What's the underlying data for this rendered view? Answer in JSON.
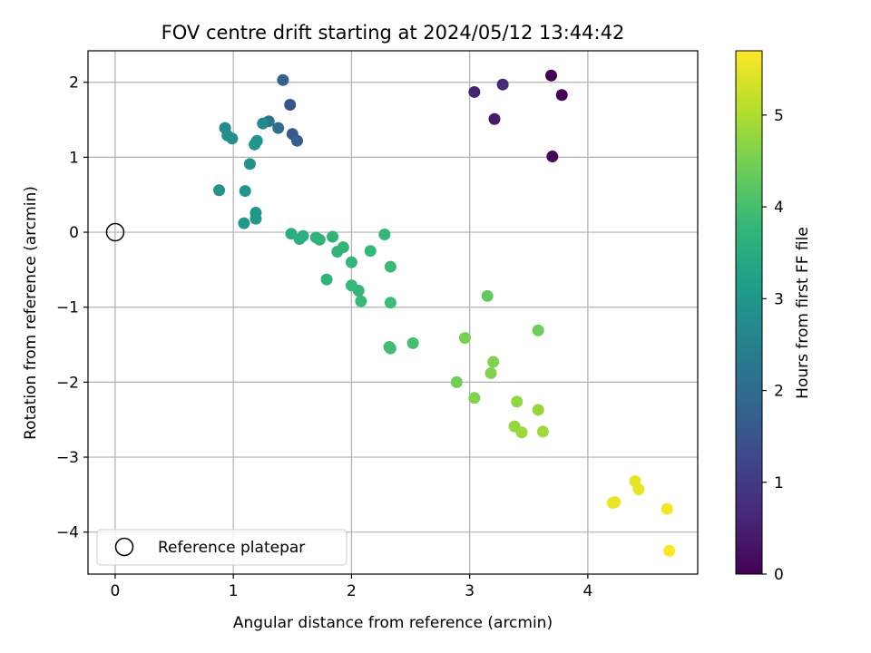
{
  "chart_data": {
    "type": "scatter",
    "title": "FOV centre drift starting at 2024/05/12 13:44:42",
    "xlabel": "Angular distance from reference (arcmin)",
    "ylabel": "Rotation from reference (arcmin)",
    "xlim": [
      -0.23,
      4.93
    ],
    "ylim": [
      -4.56,
      2.42
    ],
    "xticks": [
      0,
      1,
      2,
      3,
      4
    ],
    "yticks": [
      -4,
      -3,
      -2,
      -1,
      0,
      1,
      2
    ],
    "grid": true,
    "colorbar": {
      "label": "Hours from first FF file",
      "colormap": "viridis",
      "range": [
        0,
        5.7
      ],
      "ticks": [
        0,
        1,
        2,
        3,
        4,
        5
      ]
    },
    "legend": {
      "placement": "lower-left",
      "entries": [
        {
          "label": "Reference platepar",
          "marker": "open-circle"
        }
      ]
    },
    "reference_point": {
      "x": 0,
      "y": 0,
      "label": "Reference platepar"
    },
    "points": [
      {
        "x": 3.69,
        "y": 2.09,
        "hours": 0.0
      },
      {
        "x": 3.78,
        "y": 1.83,
        "hours": 0.05
      },
      {
        "x": 3.7,
        "y": 1.01,
        "hours": 0.1
      },
      {
        "x": 3.21,
        "y": 1.51,
        "hours": 0.4
      },
      {
        "x": 3.04,
        "y": 1.87,
        "hours": 0.55
      },
      {
        "x": 3.28,
        "y": 1.97,
        "hours": 0.65
      },
      {
        "x": 1.42,
        "y": 2.03,
        "hours": 1.8
      },
      {
        "x": 1.48,
        "y": 1.7,
        "hours": 1.5
      },
      {
        "x": 1.5,
        "y": 1.31,
        "hours": 1.6
      },
      {
        "x": 1.54,
        "y": 1.22,
        "hours": 1.7
      },
      {
        "x": 1.38,
        "y": 1.39,
        "hours": 2.05
      },
      {
        "x": 1.3,
        "y": 1.48,
        "hours": 2.2
      },
      {
        "x": 1.25,
        "y": 1.45,
        "hours": 2.7
      },
      {
        "x": 0.93,
        "y": 1.39,
        "hours": 2.75
      },
      {
        "x": 0.95,
        "y": 1.29,
        "hours": 2.8
      },
      {
        "x": 0.99,
        "y": 1.25,
        "hours": 2.85
      },
      {
        "x": 1.2,
        "y": 1.22,
        "hours": 2.95
      },
      {
        "x": 1.18,
        "y": 1.17,
        "hours": 3.0
      },
      {
        "x": 1.14,
        "y": 0.91,
        "hours": 2.9
      },
      {
        "x": 0.88,
        "y": 0.56,
        "hours": 2.9
      },
      {
        "x": 1.1,
        "y": 0.55,
        "hours": 2.95
      },
      {
        "x": 1.19,
        "y": 0.26,
        "hours": 3.0
      },
      {
        "x": 1.19,
        "y": 0.18,
        "hours": 3.0
      },
      {
        "x": 1.09,
        "y": 0.12,
        "hours": 3.05
      },
      {
        "x": 1.49,
        "y": -0.02,
        "hours": 3.55
      },
      {
        "x": 1.56,
        "y": -0.09,
        "hours": 3.6
      },
      {
        "x": 1.59,
        "y": -0.05,
        "hours": 3.6
      },
      {
        "x": 1.7,
        "y": -0.07,
        "hours": 3.65
      },
      {
        "x": 1.73,
        "y": -0.1,
        "hours": 3.65
      },
      {
        "x": 1.84,
        "y": -0.06,
        "hours": 3.7
      },
      {
        "x": 1.88,
        "y": -0.26,
        "hours": 3.7
      },
      {
        "x": 1.93,
        "y": -0.2,
        "hours": 3.75
      },
      {
        "x": 2.16,
        "y": -0.25,
        "hours": 3.8
      },
      {
        "x": 2.28,
        "y": -0.03,
        "hours": 3.8
      },
      {
        "x": 1.79,
        "y": -0.63,
        "hours": 3.7
      },
      {
        "x": 2.0,
        "y": -0.4,
        "hours": 3.75
      },
      {
        "x": 2.0,
        "y": -0.71,
        "hours": 3.8
      },
      {
        "x": 2.06,
        "y": -0.78,
        "hours": 3.8
      },
      {
        "x": 2.08,
        "y": -0.92,
        "hours": 3.85
      },
      {
        "x": 2.33,
        "y": -0.46,
        "hours": 3.85
      },
      {
        "x": 2.33,
        "y": -0.94,
        "hours": 3.9
      },
      {
        "x": 2.32,
        "y": -1.53,
        "hours": 3.95
      },
      {
        "x": 2.33,
        "y": -1.55,
        "hours": 3.95
      },
      {
        "x": 2.52,
        "y": -1.48,
        "hours": 4.0
      },
      {
        "x": 3.15,
        "y": -0.85,
        "hours": 4.3
      },
      {
        "x": 3.58,
        "y": -1.31,
        "hours": 4.4
      },
      {
        "x": 2.96,
        "y": -1.41,
        "hours": 4.5
      },
      {
        "x": 3.2,
        "y": -1.73,
        "hours": 4.6
      },
      {
        "x": 3.18,
        "y": -1.88,
        "hours": 4.6
      },
      {
        "x": 2.89,
        "y": -2.0,
        "hours": 4.45
      },
      {
        "x": 3.04,
        "y": -2.21,
        "hours": 4.6
      },
      {
        "x": 3.4,
        "y": -2.26,
        "hours": 4.75
      },
      {
        "x": 3.58,
        "y": -2.37,
        "hours": 4.8
      },
      {
        "x": 3.38,
        "y": -2.59,
        "hours": 4.8
      },
      {
        "x": 3.44,
        "y": -2.67,
        "hours": 4.85
      },
      {
        "x": 3.62,
        "y": -2.66,
        "hours": 4.85
      },
      {
        "x": 4.4,
        "y": -3.32,
        "hours": 5.5
      },
      {
        "x": 4.43,
        "y": -3.43,
        "hours": 5.5
      },
      {
        "x": 4.21,
        "y": -3.61,
        "hours": 5.55
      },
      {
        "x": 4.23,
        "y": -3.6,
        "hours": 5.55
      },
      {
        "x": 4.67,
        "y": -3.69,
        "hours": 5.6
      },
      {
        "x": 4.69,
        "y": -4.25,
        "hours": 5.7
      }
    ]
  }
}
